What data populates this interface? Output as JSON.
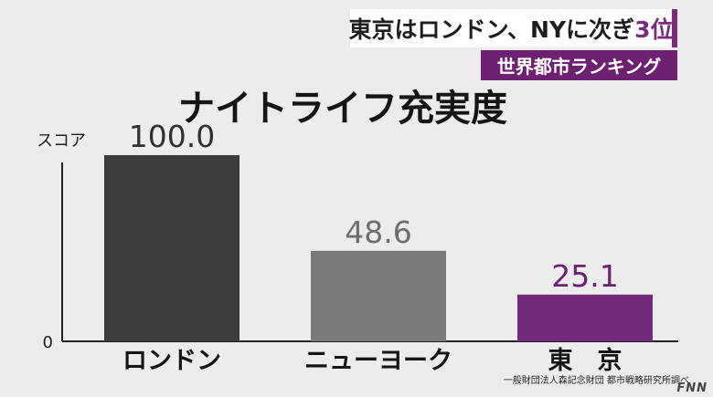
{
  "headline": {
    "main": "東京はロンドン、NYに次ぎ",
    "accent": "3位"
  },
  "subheadline": "世界都市ランキング",
  "source": "一般財団法人森記念財団 都市戦略研究所調べ",
  "logo": "FNN",
  "colors": {
    "accent": "#7b2a7e",
    "sub_bar": "#6d2170"
  },
  "chart_data": {
    "type": "bar",
    "title": "ナイトライフ充実度",
    "ylabel": "スコア",
    "ylim": [
      0,
      100
    ],
    "y_ticks": [
      "0"
    ],
    "categories": [
      "ロンドン",
      "ニューヨーク",
      "東　京"
    ],
    "values": [
      100.0,
      48.6,
      25.1
    ],
    "value_labels": [
      "100.0",
      "48.6",
      "25.1"
    ],
    "bar_colors": [
      "#3d3d3d",
      "#7a7a7a",
      "#742a7a"
    ],
    "label_colors": [
      "#303030",
      "#6e6e6e",
      "#6a2272"
    ],
    "grid": false
  }
}
